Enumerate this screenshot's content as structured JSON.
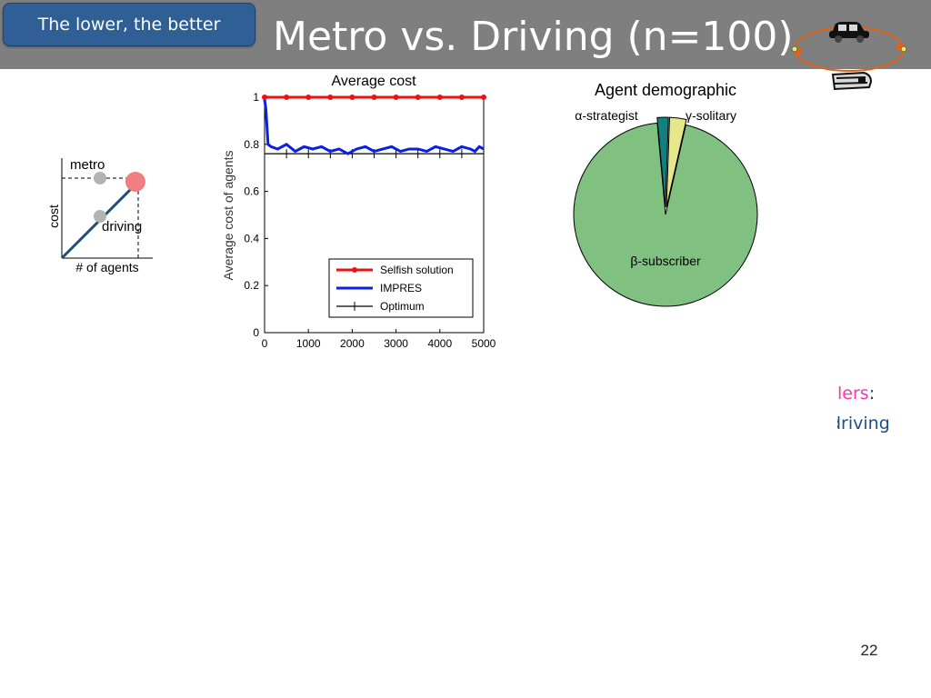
{
  "header": {
    "badge_label": "The lower, the better",
    "title": "Metro vs. Driving (n=100)"
  },
  "icons": {
    "transport": "car-and-metro-cycle-icon"
  },
  "diagram": {
    "label_metro": "metro",
    "label_driving": "driving",
    "label_cost": "cost",
    "label_agents": "# of agents"
  },
  "chart_data": [
    {
      "type": "line",
      "title": "Average cost",
      "xlabel": "",
      "ylabel": "Average cost of agents",
      "xlim": [
        0,
        5000
      ],
      "ylim": [
        0,
        1
      ],
      "xticks": [
        "0",
        "1000",
        "2000",
        "3000",
        "4000",
        "5000"
      ],
      "yticks": [
        "0",
        "0.2",
        "0.4",
        "0.6",
        "0.8",
        "1"
      ],
      "legend_position": "bottom-right",
      "series": [
        {
          "name": "Selfish solution",
          "color": "#ee1111",
          "marker": "dot",
          "x": [
            0,
            500,
            1000,
            1500,
            2000,
            2500,
            3000,
            3500,
            4000,
            4500,
            5000
          ],
          "y": [
            1,
            1,
            1,
            1,
            1,
            1,
            1,
            1,
            1,
            1,
            1
          ]
        },
        {
          "name": "IMPRES",
          "color": "#0a1fe6",
          "marker": "none",
          "x": [
            0,
            30,
            80,
            150,
            300,
            500,
            700,
            900,
            1100,
            1300,
            1500,
            1700,
            1900,
            2100,
            2300,
            2500,
            2700,
            2900,
            3100,
            3300,
            3500,
            3700,
            3900,
            4100,
            4300,
            4500,
            4700,
            4800,
            4900,
            5000
          ],
          "y": [
            0.99,
            0.95,
            0.8,
            0.79,
            0.78,
            0.8,
            0.77,
            0.79,
            0.78,
            0.79,
            0.77,
            0.78,
            0.76,
            0.78,
            0.79,
            0.77,
            0.78,
            0.79,
            0.77,
            0.78,
            0.78,
            0.77,
            0.79,
            0.78,
            0.77,
            0.79,
            0.78,
            0.77,
            0.79,
            0.78
          ]
        },
        {
          "name": "Optimum",
          "color": "#000000",
          "marker": "plus",
          "x": [
            0,
            500,
            1000,
            1500,
            2000,
            2500,
            3000,
            3500,
            4000,
            4500,
            5000
          ],
          "y": [
            0.76,
            0.76,
            0.76,
            0.76,
            0.76,
            0.76,
            0.76,
            0.76,
            0.76,
            0.76,
            0.76
          ]
        }
      ]
    },
    {
      "type": "pie",
      "title": "Agent demographic",
      "slices": [
        {
          "label": "β-subscriber",
          "value": 95,
          "color": "#80c080"
        },
        {
          "label": "α-strategist",
          "value": 2,
          "color": "#138080",
          "exploded": true
        },
        {
          "label": "γ-solitary",
          "value": 3,
          "color": "#e6e68a",
          "exploded": true
        }
      ]
    }
  ],
  "fragments": {
    "pink_word": "lers",
    "colon": ":",
    "blue_word": "driving"
  },
  "footer": {
    "slide_number": "22"
  }
}
